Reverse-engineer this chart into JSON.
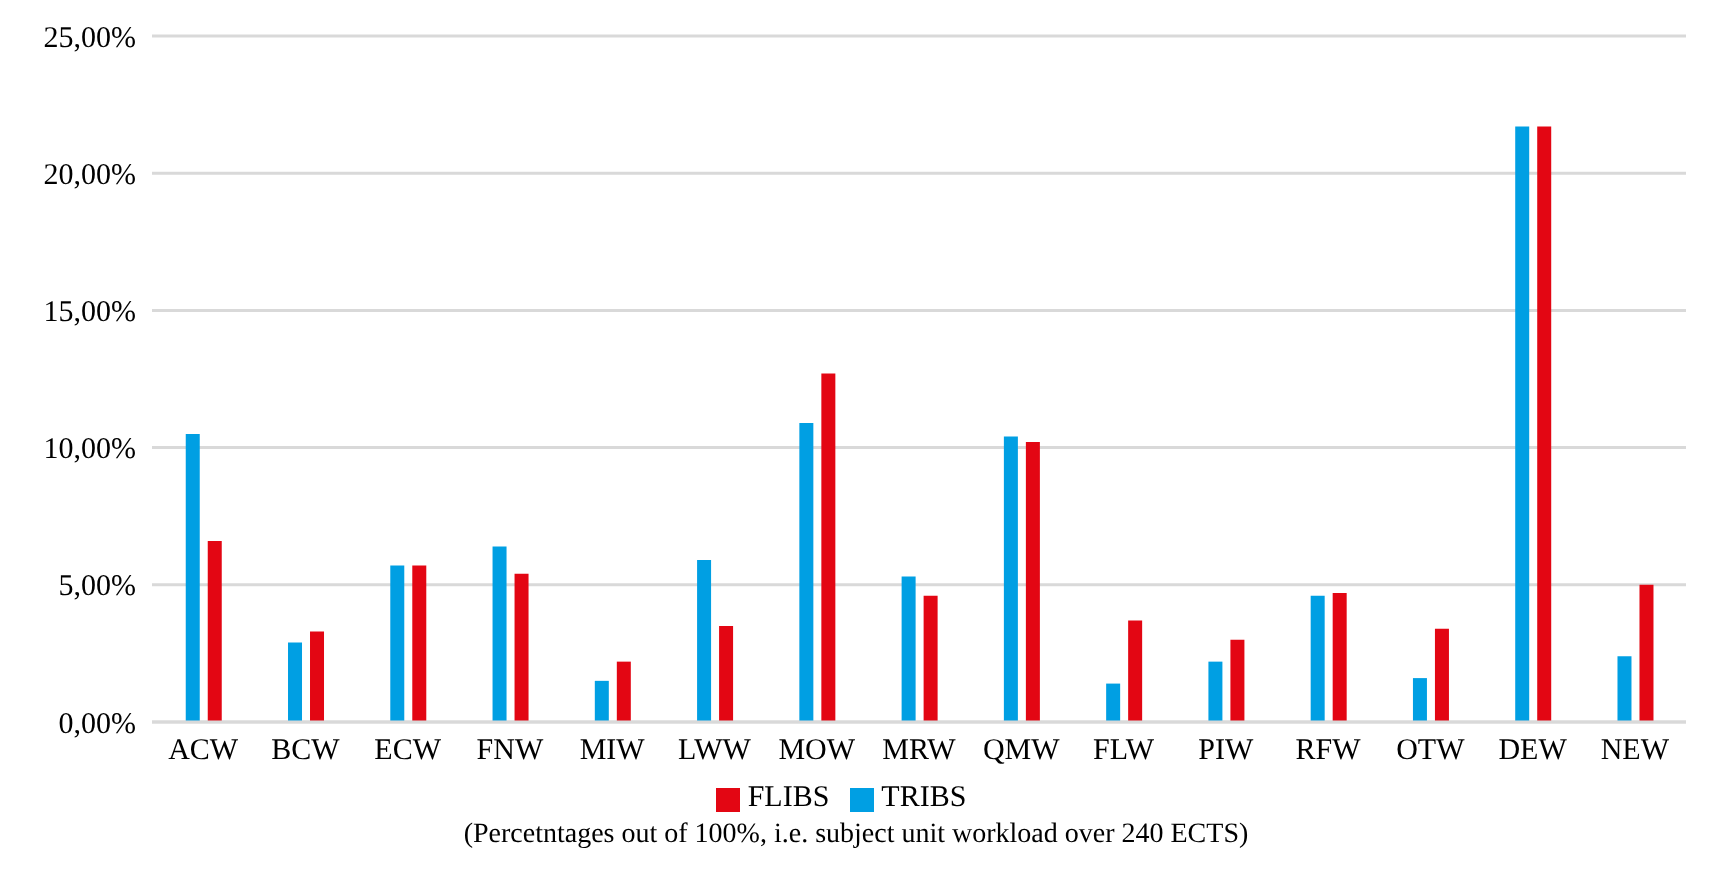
{
  "chart_data": {
    "type": "bar",
    "categories": [
      "ACW",
      "BCW",
      "ECW",
      "FNW",
      "MIW",
      "LWW",
      "MOW",
      "MRW",
      "QMW",
      "FLW",
      "PIW",
      "RFW",
      "OTW",
      "DEW",
      "NEW"
    ],
    "series": [
      {
        "name": "TRIBS",
        "color": "#009fe3",
        "values": [
          10.5,
          2.9,
          5.7,
          6.4,
          1.5,
          5.9,
          10.9,
          5.3,
          10.4,
          1.4,
          2.2,
          4.6,
          1.6,
          21.7,
          2.4
        ]
      },
      {
        "name": "FLIBS",
        "color": "#e30613",
        "values": [
          6.6,
          3.3,
          5.7,
          5.4,
          2.2,
          3.5,
          12.7,
          4.6,
          10.2,
          3.7,
          3.0,
          4.7,
          3.4,
          21.7,
          5.0
        ]
      }
    ],
    "ylim": [
      0,
      25
    ],
    "yticks": [
      {
        "value": 0,
        "label": "0,00%"
      },
      {
        "value": 5,
        "label": "5,00%"
      },
      {
        "value": 10,
        "label": "10,00%"
      },
      {
        "value": 15,
        "label": "15,00%"
      },
      {
        "value": 20,
        "label": "20,00%"
      },
      {
        "value": 25,
        "label": "25,00%"
      }
    ],
    "grid": "y",
    "legend": "bottom",
    "annotations": [
      "(Percetntages out of 100%, i.e. subject unit workload over 240 ECTS)"
    ]
  }
}
